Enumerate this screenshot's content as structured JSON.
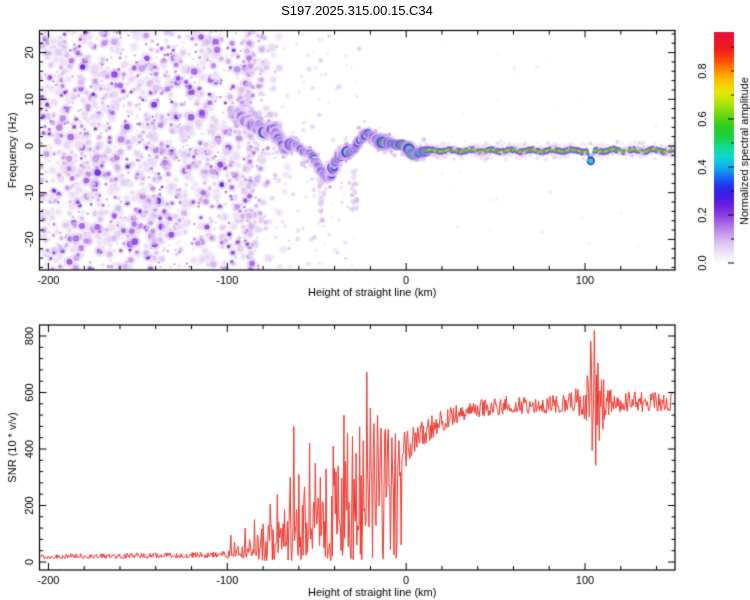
{
  "title": "S197.2025.315.00.15.C34",
  "chart_data": [
    {
      "type": "heatmap",
      "name": "spectrogram",
      "xlabel": "Height of straight line (km)",
      "ylabel": "Frequency (Hz)",
      "xlim": [
        -205,
        150.3
      ],
      "ylim": [
        -26.6,
        24.8
      ],
      "xticks": [
        -200,
        -100,
        0,
        100
      ],
      "xtick_labels": [
        "-200",
        "-100",
        "0",
        "100"
      ],
      "x_minor_step": 20,
      "yticks": [
        -20,
        -10,
        0,
        10,
        20
      ],
      "ytick_labels": [
        "-20",
        "-10",
        "0",
        "10",
        "20"
      ],
      "y_minor_step": 2,
      "colorbar": {
        "label": "Normalized spectral amplitude",
        "ticks": [
          "0.0",
          "0.2",
          "0.4",
          "0.6",
          "0.8"
        ],
        "tick_values": [
          0,
          0.2,
          0.4,
          0.6,
          0.8
        ],
        "minor_step": 0.1,
        "range": [
          0,
          0.96
        ],
        "colormap": [
          [
            0,
            "#ffffff"
          ],
          [
            0.02,
            "#f7f0fb"
          ],
          [
            0.06,
            "#e8d7f5"
          ],
          [
            0.1,
            "#d4b2ee"
          ],
          [
            0.15,
            "#b37ae6"
          ],
          [
            0.2,
            "#8a3fe0"
          ],
          [
            0.24,
            "#6a1fdd"
          ],
          [
            0.28,
            "#4318e6"
          ],
          [
            0.32,
            "#2233f0"
          ],
          [
            0.36,
            "#1b6df5"
          ],
          [
            0.4,
            "#0fb4ef"
          ],
          [
            0.44,
            "#10d8d2"
          ],
          [
            0.48,
            "#12dd9b"
          ],
          [
            0.52,
            "#17d246"
          ],
          [
            0.57,
            "#2ccc1e"
          ],
          [
            0.62,
            "#6fd810"
          ],
          [
            0.67,
            "#b5e40a"
          ],
          [
            0.71,
            "#e8e806"
          ],
          [
            0.76,
            "#fdc303"
          ],
          [
            0.8,
            "#ff9000"
          ],
          [
            0.84,
            "#ff5102"
          ],
          [
            0.88,
            "#f42116"
          ],
          [
            0.93,
            "#e8132e"
          ],
          [
            1,
            "#e01157"
          ]
        ]
      },
      "noise_field": {
        "x_range": [
          -205,
          -88
        ],
        "fade_x_range": [
          -88,
          -66
        ],
        "sparse_x_range": [
          -66,
          -26
        ],
        "amp_range": [
          0.04,
          0.22
        ]
      },
      "streaks": [
        {
          "x": -48,
          "freq_range": [
            -16,
            -6
          ]
        },
        {
          "x": -29,
          "freq_range": [
            -14,
            -5
          ]
        }
      ],
      "signal_trace": [
        [
          -98,
          7.8,
          0.3
        ],
        [
          -96,
          6.9,
          0.4
        ],
        [
          -94,
          7.3,
          0.34
        ],
        [
          -92,
          6.1,
          0.45
        ],
        [
          -90,
          5.3,
          0.4
        ],
        [
          -88,
          5.8,
          0.46
        ],
        [
          -86,
          4.6,
          0.42
        ],
        [
          -84,
          3.9,
          0.5
        ],
        [
          -82,
          4.5,
          0.44
        ],
        [
          -80,
          3.3,
          0.5
        ],
        [
          -78,
          2.7,
          0.46
        ],
        [
          -76,
          3.4,
          0.42
        ],
        [
          -74,
          3.8,
          0.5
        ],
        [
          -72,
          2.2,
          0.46
        ],
        [
          -70,
          0.6,
          0.52
        ],
        [
          -68,
          -0.9,
          0.5
        ],
        [
          -66,
          -0.2,
          0.46
        ],
        [
          -64,
          0.4,
          0.52
        ],
        [
          -62,
          0.2,
          0.56
        ],
        [
          -60,
          -0.6,
          0.5
        ],
        [
          -58,
          -1,
          0.46
        ],
        [
          -56,
          -1.3,
          0.52
        ],
        [
          -54,
          -1.8,
          0.48
        ],
        [
          -52,
          -2.4,
          0.55
        ],
        [
          -50,
          -3.6,
          0.5
        ],
        [
          -48,
          -5,
          0.46
        ],
        [
          -46,
          -6.2,
          0.55
        ],
        [
          -44,
          -6.9,
          0.5
        ],
        [
          -42,
          -6.4,
          0.46
        ],
        [
          -40,
          -3.6,
          0.52
        ],
        [
          -38,
          -2.6,
          0.5
        ],
        [
          -36,
          -2,
          0.55
        ],
        [
          -34,
          -1.5,
          0.58
        ],
        [
          -32,
          -1.2,
          0.55
        ],
        [
          -30,
          -0.9,
          0.6
        ],
        [
          -28,
          0,
          0.58
        ],
        [
          -26,
          1.2,
          0.62
        ],
        [
          -24,
          2,
          0.6
        ],
        [
          -22,
          2.6,
          0.7
        ],
        [
          -20,
          2.4,
          0.66
        ],
        [
          -18,
          1.8,
          0.72
        ],
        [
          -16,
          1.2,
          0.68
        ],
        [
          -14,
          0.8,
          0.78
        ],
        [
          -12,
          0.6,
          0.88
        ],
        [
          -10,
          0.5,
          0.92
        ],
        [
          -8,
          0.4,
          0.9
        ],
        [
          -6,
          0.3,
          0.94
        ],
        [
          -4,
          0.2,
          0.92
        ],
        [
          -2,
          0.1,
          0.95
        ],
        [
          0,
          -0.2,
          0.9
        ],
        [
          2,
          -1.2,
          0.86
        ],
        [
          4,
          -1.8,
          0.88
        ],
        [
          6,
          -1.6,
          0.9
        ],
        [
          8,
          -1.3,
          0.92
        ],
        [
          10,
          -1.1,
          0.94
        ],
        [
          13,
          -1,
          0.95
        ]
      ],
      "carrier": {
        "x_start": 11,
        "x_end": 150.3,
        "freq": -1.0,
        "amp": 0.93,
        "dropout": {
          "x_center": 103.2,
          "x_range": [
            100.3,
            106
          ],
          "freq_dip": -2.2,
          "amp_factor": 0.42
        }
      }
    },
    {
      "type": "line",
      "name": "snr",
      "xlabel": "Height of straight line (km)",
      "ylabel": "SNR (10 * v/v)",
      "xlim": [
        -205,
        150.3
      ],
      "ylim": [
        -28,
        839
      ],
      "xticks": [
        -200,
        -100,
        0,
        100
      ],
      "xtick_labels": [
        "-200",
        "-100",
        "0",
        "100"
      ],
      "x_minor_step": 20,
      "yticks": [
        0,
        200,
        400,
        600,
        800
      ],
      "ytick_labels": [
        "0",
        "200",
        "400",
        "600",
        "800"
      ],
      "y_minor_step": 40,
      "line_color": "#ee3830",
      "base_profile": [
        [
          -205,
          18
        ],
        [
          -160,
          20
        ],
        [
          -120,
          22
        ],
        [
          -100,
          24
        ],
        [
          -93,
          30
        ],
        [
          -86,
          40
        ],
        [
          -80,
          52
        ],
        [
          -74,
          62
        ],
        [
          -68,
          75
        ],
        [
          -62,
          88
        ],
        [
          -56,
          100
        ],
        [
          -50,
          112
        ],
        [
          -44,
          126
        ],
        [
          -38,
          145
        ],
        [
          -32,
          165
        ],
        [
          -27,
          185
        ],
        [
          -22,
          215
        ],
        [
          -17,
          255
        ],
        [
          -12,
          295
        ],
        [
          -8,
          330
        ],
        [
          -4,
          365
        ],
        [
          0,
          395
        ],
        [
          4,
          420
        ],
        [
          9,
          445
        ],
        [
          15,
          472
        ],
        [
          22,
          500
        ],
        [
          30,
          522
        ],
        [
          40,
          538
        ],
        [
          55,
          548
        ],
        [
          70,
          550
        ],
        [
          85,
          552
        ],
        [
          95,
          558
        ],
        [
          102,
          560
        ],
        [
          106,
          550
        ],
        [
          110,
          558
        ],
        [
          120,
          558
        ],
        [
          135,
          560
        ],
        [
          150,
          562
        ]
      ],
      "volatility": [
        [
          -205,
          9
        ],
        [
          -140,
          10
        ],
        [
          -105,
          11
        ],
        [
          -97,
          18
        ],
        [
          -92,
          26
        ],
        [
          -87,
          40
        ],
        [
          -82,
          55
        ],
        [
          -76,
          70
        ],
        [
          -70,
          85
        ],
        [
          -64,
          100
        ],
        [
          -58,
          110
        ],
        [
          -52,
          120
        ],
        [
          -46,
          140
        ],
        [
          -40,
          170
        ],
        [
          -34,
          185
        ],
        [
          -28,
          190
        ],
        [
          -22,
          185
        ],
        [
          -16,
          170
        ],
        [
          -10,
          150
        ],
        [
          -5,
          120
        ],
        [
          -1,
          90
        ],
        [
          3,
          70
        ],
        [
          8,
          55
        ],
        [
          14,
          45
        ],
        [
          22,
          38
        ],
        [
          35,
          33
        ],
        [
          60,
          32
        ],
        [
          90,
          34
        ],
        [
          100,
          70
        ],
        [
          104,
          120
        ],
        [
          108,
          130
        ],
        [
          112,
          60
        ],
        [
          118,
          38
        ],
        [
          150,
          34
        ]
      ],
      "spikes": [
        [
          -98,
          95
        ],
        [
          -96,
          70
        ],
        [
          -90,
          120
        ],
        [
          -85,
          150
        ],
        [
          -80,
          135
        ],
        [
          -76,
          205
        ],
        [
          -72,
          240
        ],
        [
          -68,
          185
        ],
        [
          -65,
          300
        ],
        [
          -63,
          480
        ],
        [
          -60,
          310
        ],
        [
          -57,
          265
        ],
        [
          -54,
          420
        ],
        [
          -51,
          350
        ],
        [
          -48,
          300
        ],
        [
          -45,
          330
        ],
        [
          -41,
          410
        ],
        [
          -38,
          340
        ],
        [
          -35,
          520
        ],
        [
          -33,
          455
        ],
        [
          -30,
          445
        ],
        [
          -28,
          385
        ],
        [
          -26,
          478
        ],
        [
          -24,
          430
        ],
        [
          -22,
          672
        ],
        [
          -20,
          545
        ],
        [
          -18,
          490
        ],
        [
          -16,
          520
        ],
        [
          -14,
          475
        ],
        [
          -12,
          455
        ],
        [
          -10,
          470
        ],
        [
          -8,
          440
        ],
        [
          -6,
          455
        ],
        [
          -4,
          430
        ],
        [
          103,
          782
        ],
        [
          105,
          820
        ],
        [
          107,
          705
        ],
        [
          109,
          645
        ]
      ],
      "dips": [
        [
          -31,
          12
        ],
        [
          -25,
          8
        ],
        [
          -19,
          15
        ],
        [
          -13,
          10
        ],
        [
          -7,
          25
        ],
        [
          -3,
          60
        ],
        [
          104,
          395
        ],
        [
          106,
          342
        ],
        [
          108,
          430
        ],
        [
          110,
          470
        ]
      ]
    }
  ]
}
